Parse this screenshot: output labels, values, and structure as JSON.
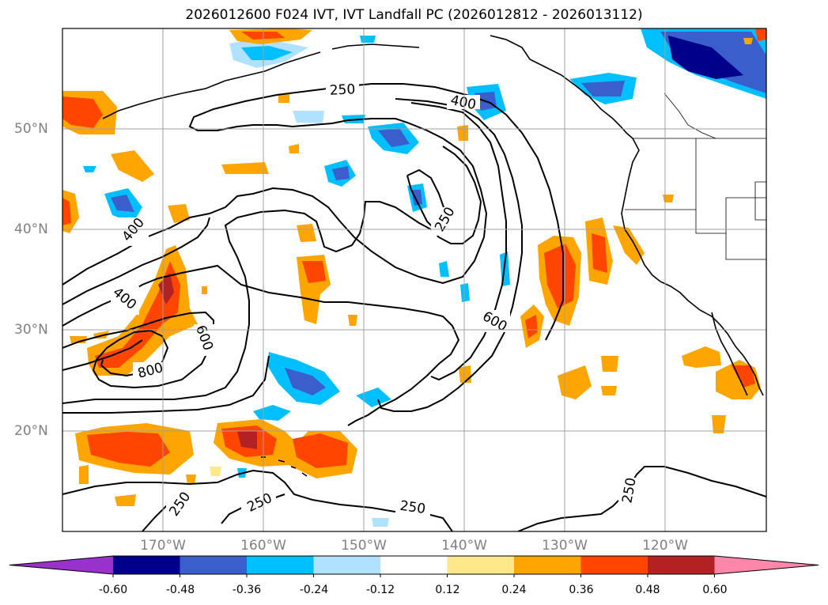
{
  "title": "2026012600 F024 IVT, IVT Landfall PC (2026012812 - 2026013112)",
  "lat_labels": [
    "50°N",
    "40°N",
    "30°N",
    "20°N"
  ],
  "lon_labels": [
    "170°W",
    "160°W",
    "150°W",
    "140°W",
    "130°W",
    "120°W"
  ],
  "contour_labels": [
    "250",
    "400",
    "250",
    "400",
    "400",
    "600",
    "600",
    "800",
    "250",
    "250",
    "250",
    "250"
  ],
  "colorbar": {
    "ticks": [
      "-0.60",
      "-0.48",
      "-0.36",
      "-0.24",
      "-0.12",
      "0.12",
      "0.24",
      "0.36",
      "0.48",
      "0.60"
    ],
    "colors": [
      "#9932cc",
      "#00008b",
      "#3a5fcd",
      "#00bfff",
      "#b0e2ff",
      "#ffffff",
      "#ffe88a",
      "#ffa500",
      "#ff4500",
      "#b22222",
      "#ff88aa"
    ]
  }
}
